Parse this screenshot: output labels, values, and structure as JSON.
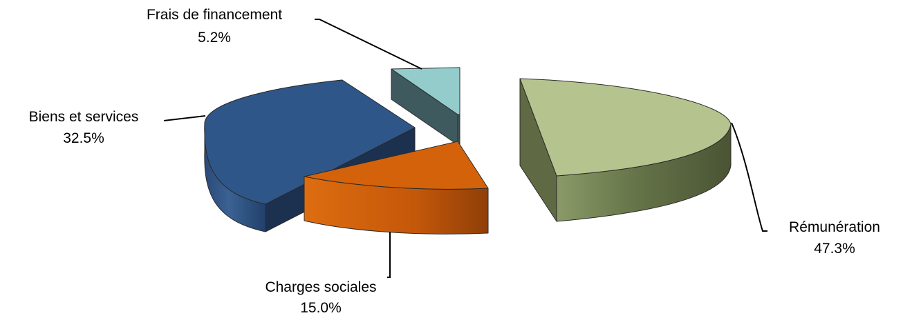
{
  "chart_data": {
    "type": "pie",
    "style": "3d-exploded",
    "slices": [
      {
        "label": "Rémunération",
        "value": 47.3,
        "value_text": "47.3%",
        "color": "#b5c38e"
      },
      {
        "label": "Charges sociales",
        "value": 15.0,
        "value_text": "15.0%",
        "color": "#d4620a"
      },
      {
        "label": "Biens et services",
        "value": 32.5,
        "value_text": "32.5%",
        "color": "#2f5688"
      },
      {
        "label": "Frais de financement",
        "value": 5.2,
        "value_text": "5.2%",
        "color": "#93cccb"
      }
    ],
    "legend": "none"
  }
}
